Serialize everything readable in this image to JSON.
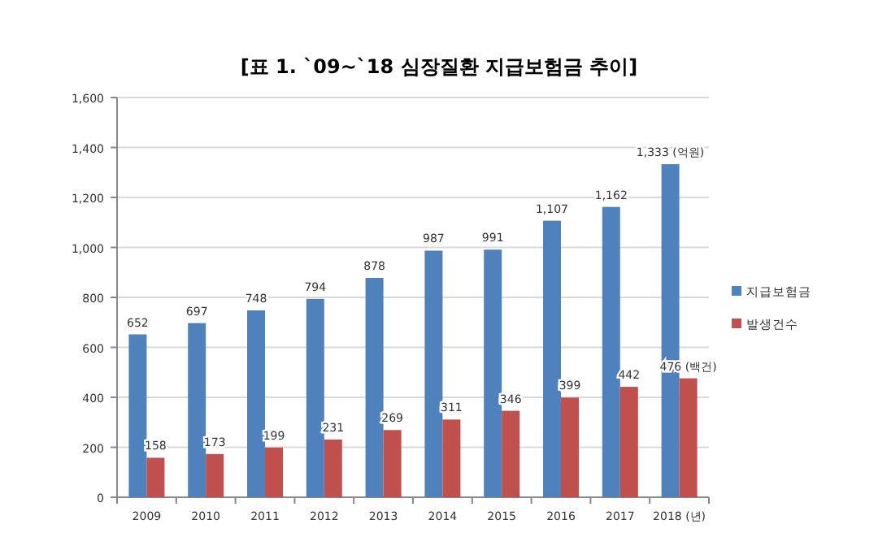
{
  "chart_data": {
    "type": "bar",
    "title": "[표 1. `09~`18 심장질환 지급보험금 추이]",
    "categories": [
      "2009",
      "2010",
      "2011",
      "2012",
      "2013",
      "2014",
      "2015",
      "2016",
      "2017",
      "2018 (년)"
    ],
    "series": [
      {
        "name": "지급보험금",
        "color": "#4f81bd",
        "values": [
          652,
          697,
          748,
          794,
          878,
          987,
          991,
          1107,
          1162,
          1333
        ],
        "value_labels": [
          "652",
          "697",
          "748",
          "794",
          "878",
          "987",
          "991",
          "1,107",
          "1,162",
          "1,333 (억원)"
        ]
      },
      {
        "name": "발생건수",
        "color": "#c0504d",
        "values": [
          158,
          173,
          199,
          231,
          269,
          311,
          346,
          399,
          442,
          476
        ],
        "value_labels": [
          "158",
          "173",
          "199",
          "231",
          "269",
          "311",
          "346",
          "399",
          "442",
          "476 (백건)"
        ]
      }
    ],
    "ylim": [
      0,
      1600
    ],
    "yticks": [
      0,
      200,
      400,
      600,
      800,
      {
        "value": 1000,
        "label": "1,000"
      },
      {
        "value": 1200,
        "label": "1,200"
      },
      {
        "value": 1400,
        "label": "1,400"
      },
      {
        "value": 1600,
        "label": "1,600"
      }
    ],
    "grid": "y",
    "legend": "right"
  }
}
